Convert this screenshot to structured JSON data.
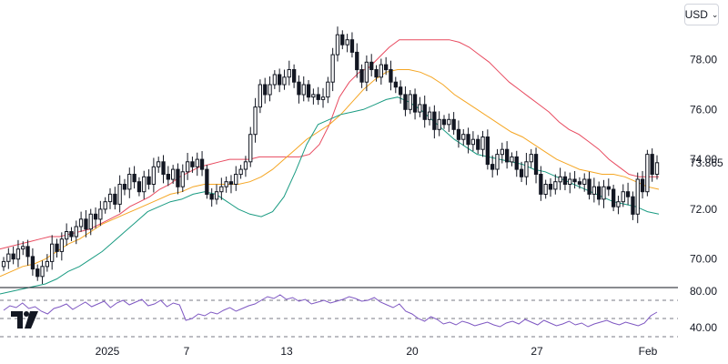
{
  "currency_selector": {
    "label": "USD",
    "icon": "chevron-down-icon"
  },
  "logo": {
    "icon": "tradingview-logo-icon"
  },
  "colors": {
    "candle": "#131722",
    "upper_band": "#e84a5f",
    "middle_band": "#f5a623",
    "lower_band": "#1a9b82",
    "rsi_line": "#7e57c2",
    "grid_dash": "#787b86"
  },
  "chart_data": [
    {
      "type": "candlestick",
      "title": "",
      "x_tick_labels": [
        "2025",
        "7",
        "13",
        "20",
        "27",
        "Feb"
      ],
      "y_tick_labels": [
        "70.00",
        "72.00",
        "74.00",
        "76.00",
        "78.00"
      ],
      "ylim": [
        69.0,
        79.3
      ],
      "last_price_label": "73.865",
      "overlays": [
        "Bollinger upper band",
        "Bollinger middle band",
        "Bollinger lower band"
      ],
      "close_series": [
        69.9,
        70.2,
        70.0,
        70.4,
        70.5,
        70.1,
        69.6,
        69.3,
        69.7,
        69.9,
        70.6,
        70.3,
        70.8,
        71.1,
        70.9,
        71.3,
        71.6,
        71.2,
        71.8,
        71.6,
        72.0,
        72.3,
        72.6,
        72.2,
        73.0,
        72.8,
        73.4,
        73.1,
        72.7,
        73.3,
        73.0,
        73.7,
        73.9,
        73.4,
        73.2,
        73.6,
        72.9,
        73.5,
        73.9,
        73.7,
        74.0,
        73.6,
        72.6,
        72.4,
        72.7,
        72.9,
        73.1,
        73.0,
        73.4,
        73.6,
        73.9,
        75.0,
        76.1,
        77.0,
        76.6,
        77.0,
        77.4,
        77.0,
        77.3,
        77.6,
        77.1,
        76.6,
        77.0,
        76.5,
        76.6,
        76.4,
        76.5,
        77.1,
        78.2,
        79.0,
        78.6,
        78.8,
        78.3,
        77.6,
        77.1,
        77.9,
        77.6,
        77.3,
        77.8,
        77.6,
        77.1,
        76.9,
        76.6,
        76.0,
        76.6,
        75.9,
        76.2,
        75.6,
        75.9,
        75.2,
        75.6,
        75.4,
        75.6,
        75.2,
        74.8,
        75.0,
        74.6,
        74.8,
        74.4,
        74.9,
        73.8,
        73.6,
        74.2,
        74.4,
        73.9,
        74.1,
        73.6,
        73.3,
        73.9,
        74.2,
        73.4,
        72.6,
        73.0,
        72.8,
        73.1,
        73.3,
        73.0,
        73.2,
        73.1,
        73.0,
        73.2,
        72.6,
        72.9,
        72.4,
        72.9,
        72.8,
        72.1,
        72.3,
        72.7,
        72.5,
        71.8,
        73.2,
        72.7,
        74.2,
        73.4,
        73.865
      ],
      "upper_band": [
        70.4,
        70.5,
        70.6,
        70.7,
        70.8,
        70.9,
        70.9,
        71.0,
        71.1,
        71.2,
        71.4,
        71.6,
        71.8,
        72.1,
        72.3,
        72.5,
        72.8,
        73.0,
        73.3,
        73.5,
        73.7,
        73.8,
        73.9,
        74.0,
        74.0,
        74.0,
        74.1,
        74.1,
        74.1,
        74.1,
        74.1,
        74.2,
        74.6,
        75.4,
        76.5,
        77.1,
        77.5,
        77.7,
        78.1,
        78.5,
        78.8,
        78.8,
        78.8,
        78.8,
        78.8,
        78.8,
        78.7,
        78.5,
        78.2,
        77.9,
        77.5,
        77.1,
        76.8,
        76.5,
        76.2,
        75.9,
        75.5,
        75.2,
        75.0,
        74.7,
        74.4,
        74.0,
        73.7,
        73.4,
        73.3,
        73.3,
        73.3
      ],
      "middle_band": [
        69.3,
        69.5,
        69.7,
        69.8,
        70.0,
        70.3,
        70.6,
        70.8,
        71.1,
        71.4,
        71.6,
        71.8,
        72.0,
        72.2,
        72.4,
        72.6,
        72.7,
        72.9,
        73.0,
        73.0,
        73.0,
        73.0,
        73.1,
        73.3,
        73.6,
        74.0,
        74.4,
        74.8,
        75.1,
        75.4,
        75.8,
        76.3,
        76.8,
        77.2,
        77.5,
        77.6,
        77.6,
        77.5,
        77.3,
        77.0,
        76.6,
        76.3,
        76.0,
        75.7,
        75.4,
        75.1,
        74.9,
        74.6,
        74.3,
        74.0,
        73.8,
        73.6,
        73.5,
        73.4,
        73.4,
        73.3,
        73.1,
        72.9,
        72.8
      ],
      "lower_band": [
        68.6,
        68.7,
        68.8,
        68.9,
        69.0,
        69.2,
        69.5,
        69.7,
        70.0,
        70.3,
        70.7,
        71.1,
        71.5,
        71.9,
        72.1,
        72.3,
        72.4,
        72.6,
        72.7,
        72.6,
        72.3,
        72.0,
        71.8,
        71.7,
        71.9,
        72.5,
        73.5,
        74.6,
        75.4,
        75.6,
        75.8,
        75.9,
        76.0,
        76.2,
        76.4,
        76.5,
        76.3,
        76.0,
        75.6,
        75.2,
        74.8,
        74.5,
        74.2,
        74.1,
        74.0,
        73.9,
        73.8,
        73.6,
        73.5,
        73.3,
        73.1,
        72.9,
        72.7,
        72.5,
        72.3,
        72.2,
        72.1,
        71.9,
        71.8
      ]
    },
    {
      "type": "line",
      "title": "",
      "y_tick_labels": [
        "80.00",
        "40.00"
      ],
      "reference_levels": [
        70,
        30
      ],
      "ylim": [
        30,
        80
      ],
      "values": [
        59,
        64,
        62,
        67,
        61,
        63,
        58,
        55,
        61,
        63,
        66,
        60,
        64,
        68,
        63,
        66,
        69,
        62,
        67,
        70,
        65,
        68,
        71,
        64,
        66,
        70,
        63,
        67,
        65,
        48,
        50,
        55,
        53,
        57,
        55,
        59,
        62,
        58,
        61,
        64,
        66,
        70,
        74,
        72,
        76,
        71,
        73,
        69,
        71,
        66,
        68,
        70,
        67,
        69,
        71,
        74,
        72,
        69,
        70,
        73,
        68,
        65,
        62,
        66,
        58,
        55,
        50,
        47,
        52,
        49,
        44,
        46,
        43,
        47,
        45,
        42,
        44,
        46,
        43,
        41,
        45,
        47,
        44,
        49,
        46,
        43,
        48,
        45,
        42,
        44,
        47,
        43,
        45,
        41,
        44,
        46,
        48,
        45,
        43,
        46,
        44,
        42,
        45,
        53,
        57
      ]
    }
  ]
}
